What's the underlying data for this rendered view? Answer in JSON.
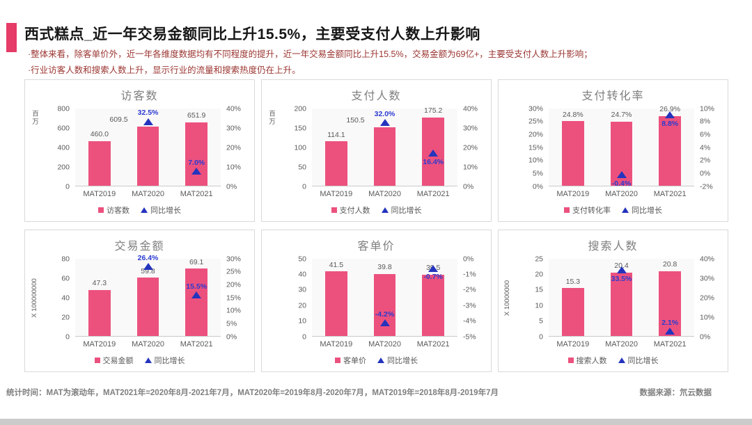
{
  "page": {
    "title": "西式糕点_近一年交易金额同比上升15.5%，主要受支付人数上升影响",
    "bullets": [
      "·整体来看，除客单价外，近一年各维度数据均有不同程度的提升，近一年交易金额同比上升15.5%，交易金额为69亿+，主要受支付人数上升影响；",
      "·行业访客人数和搜索人数上升，显示行业的流量和搜索热度仍在上升。"
    ],
    "footer_left": "统计时间：MAT为滚动年，MAT2021年=2020年8月-2021年7月，MAT2020年=2019年8月-2020年7月，MAT2019年=2018年8月-2019年7月",
    "footer_right": "数据来源：氘云数据"
  },
  "colors": {
    "accent": "#e53c68",
    "bar": "#ec517e",
    "triangle": "#2434bd",
    "growth_text": "#2a3bd0",
    "label_text": "#595959",
    "chart_title": "#7f7f7f",
    "bullet_text": "#9b3632",
    "footer_text": "#7f7f7f"
  },
  "chart_data": [
    {
      "type": "bar",
      "title": "访客数",
      "categories": [
        "MAT2019",
        "MAT2020",
        "MAT2021"
      ],
      "left_axis": {
        "min": 0,
        "max": 800,
        "step": 200,
        "percent": false,
        "unit": "百万"
      },
      "right_axis": {
        "min": 0,
        "max": 40,
        "step": 10,
        "percent": true
      },
      "series": [
        {
          "name": "访客数",
          "type": "bar",
          "axis": "left",
          "values": [
            460.0,
            609.5,
            651.9
          ],
          "labels": [
            "460.0",
            "609.5",
            "651.9"
          ],
          "label_dx": [
            0,
            -42,
            0
          ]
        },
        {
          "name": "同比增长",
          "type": "triangle",
          "axis": "right",
          "values": [
            null,
            32.5,
            7.0
          ],
          "labels": [
            "",
            "32.5%",
            "7.0%"
          ],
          "label_pos": [
            "",
            "above",
            "above"
          ]
        }
      ]
    },
    {
      "type": "bar",
      "title": "支付人数",
      "categories": [
        "MAT2019",
        "MAT2020",
        "MAT2021"
      ],
      "left_axis": {
        "min": 0,
        "max": 200,
        "step": 50,
        "percent": false,
        "unit": "百万"
      },
      "right_axis": {
        "min": 0,
        "max": 40,
        "step": 10,
        "percent": true
      },
      "series": [
        {
          "name": "支付人数",
          "type": "bar",
          "axis": "left",
          "values": [
            114.1,
            150.5,
            175.2
          ],
          "labels": [
            "114.1",
            "150.5",
            "175.2"
          ],
          "label_dx": [
            0,
            -42,
            0
          ]
        },
        {
          "name": "同比增长",
          "type": "triangle",
          "axis": "right",
          "values": [
            null,
            32.0,
            16.4
          ],
          "labels": [
            "",
            "32.0%",
            "16.4%"
          ],
          "label_pos": [
            "",
            "above",
            "below"
          ]
        }
      ]
    },
    {
      "type": "bar",
      "title": "支付转化率",
      "categories": [
        "MAT2019",
        "MAT2020",
        "MAT2021"
      ],
      "left_axis": {
        "min": 0,
        "max": 30,
        "step": 5,
        "percent": true,
        "unit": null
      },
      "right_axis": {
        "min": -2,
        "max": 10,
        "step": 2,
        "percent": true
      },
      "series": [
        {
          "name": "支付转化率",
          "type": "bar",
          "axis": "left",
          "values": [
            24.8,
            24.7,
            26.9
          ],
          "labels": [
            "24.8%",
            "24.7%",
            "26.9%"
          ],
          "label_dx": [
            0,
            0,
            0
          ]
        },
        {
          "name": "同比增长",
          "type": "triangle",
          "axis": "right",
          "values": [
            null,
            -0.4,
            8.8
          ],
          "labels": [
            "",
            "-0.4%",
            "8.8%"
          ],
          "label_pos": [
            "",
            "below",
            "below"
          ]
        }
      ]
    },
    {
      "type": "bar",
      "title": "交易金额",
      "categories": [
        "MAT2019",
        "MAT2020",
        "MAT2021"
      ],
      "left_axis": {
        "min": 0,
        "max": 80,
        "step": 20,
        "percent": false,
        "unit": "X 100000000"
      },
      "right_axis": {
        "min": 0,
        "max": 30,
        "step": 5,
        "percent": true
      },
      "series": [
        {
          "name": "交易金额",
          "type": "bar",
          "axis": "left",
          "values": [
            47.3,
            59.8,
            69.1
          ],
          "labels": [
            "47.3",
            "59.8",
            "69.1"
          ],
          "label_dx": [
            0,
            0,
            0
          ]
        },
        {
          "name": "同比增长",
          "type": "triangle",
          "axis": "right",
          "values": [
            null,
            26.4,
            15.5
          ],
          "labels": [
            "",
            "26.4%",
            "15.5%"
          ],
          "label_pos": [
            "",
            "above",
            "above"
          ]
        }
      ]
    },
    {
      "type": "bar",
      "title": "客单价",
      "categories": [
        "MAT2019",
        "MAT2020",
        "MAT2021"
      ],
      "left_axis": {
        "min": 0,
        "max": 50,
        "step": 10,
        "percent": false,
        "unit": null
      },
      "right_axis": {
        "min": -5,
        "max": 0,
        "step": 1,
        "percent": true
      },
      "series": [
        {
          "name": "客单价",
          "type": "bar",
          "axis": "left",
          "values": [
            41.5,
            39.8,
            39.5
          ],
          "labels": [
            "41.5",
            "39.8",
            "39.5"
          ],
          "label_dx": [
            0,
            0,
            0
          ]
        },
        {
          "name": "同比增长",
          "type": "triangle",
          "axis": "right",
          "values": [
            null,
            -4.2,
            -0.7
          ],
          "labels": [
            "",
            "-4.2%",
            "-0.7%"
          ],
          "label_pos": [
            "",
            "above",
            "below"
          ]
        }
      ]
    },
    {
      "type": "bar",
      "title": "搜索人数",
      "categories": [
        "MAT2019",
        "MAT2020",
        "MAT2021"
      ],
      "left_axis": {
        "min": 0,
        "max": 25,
        "step": 5,
        "percent": false,
        "unit": "X 10000000"
      },
      "right_axis": {
        "min": 0,
        "max": 40,
        "step": 10,
        "percent": true
      },
      "series": [
        {
          "name": "搜索人数",
          "type": "bar",
          "axis": "left",
          "values": [
            15.3,
            20.4,
            20.8
          ],
          "labels": [
            "15.3",
            "20.4",
            "20.8"
          ],
          "label_dx": [
            0,
            0,
            0
          ]
        },
        {
          "name": "同比增长",
          "type": "triangle",
          "axis": "right",
          "values": [
            null,
            33.5,
            2.1
          ],
          "labels": [
            "",
            "33.5%",
            "2.1%"
          ],
          "label_pos": [
            "",
            "below",
            "above"
          ]
        }
      ]
    }
  ]
}
